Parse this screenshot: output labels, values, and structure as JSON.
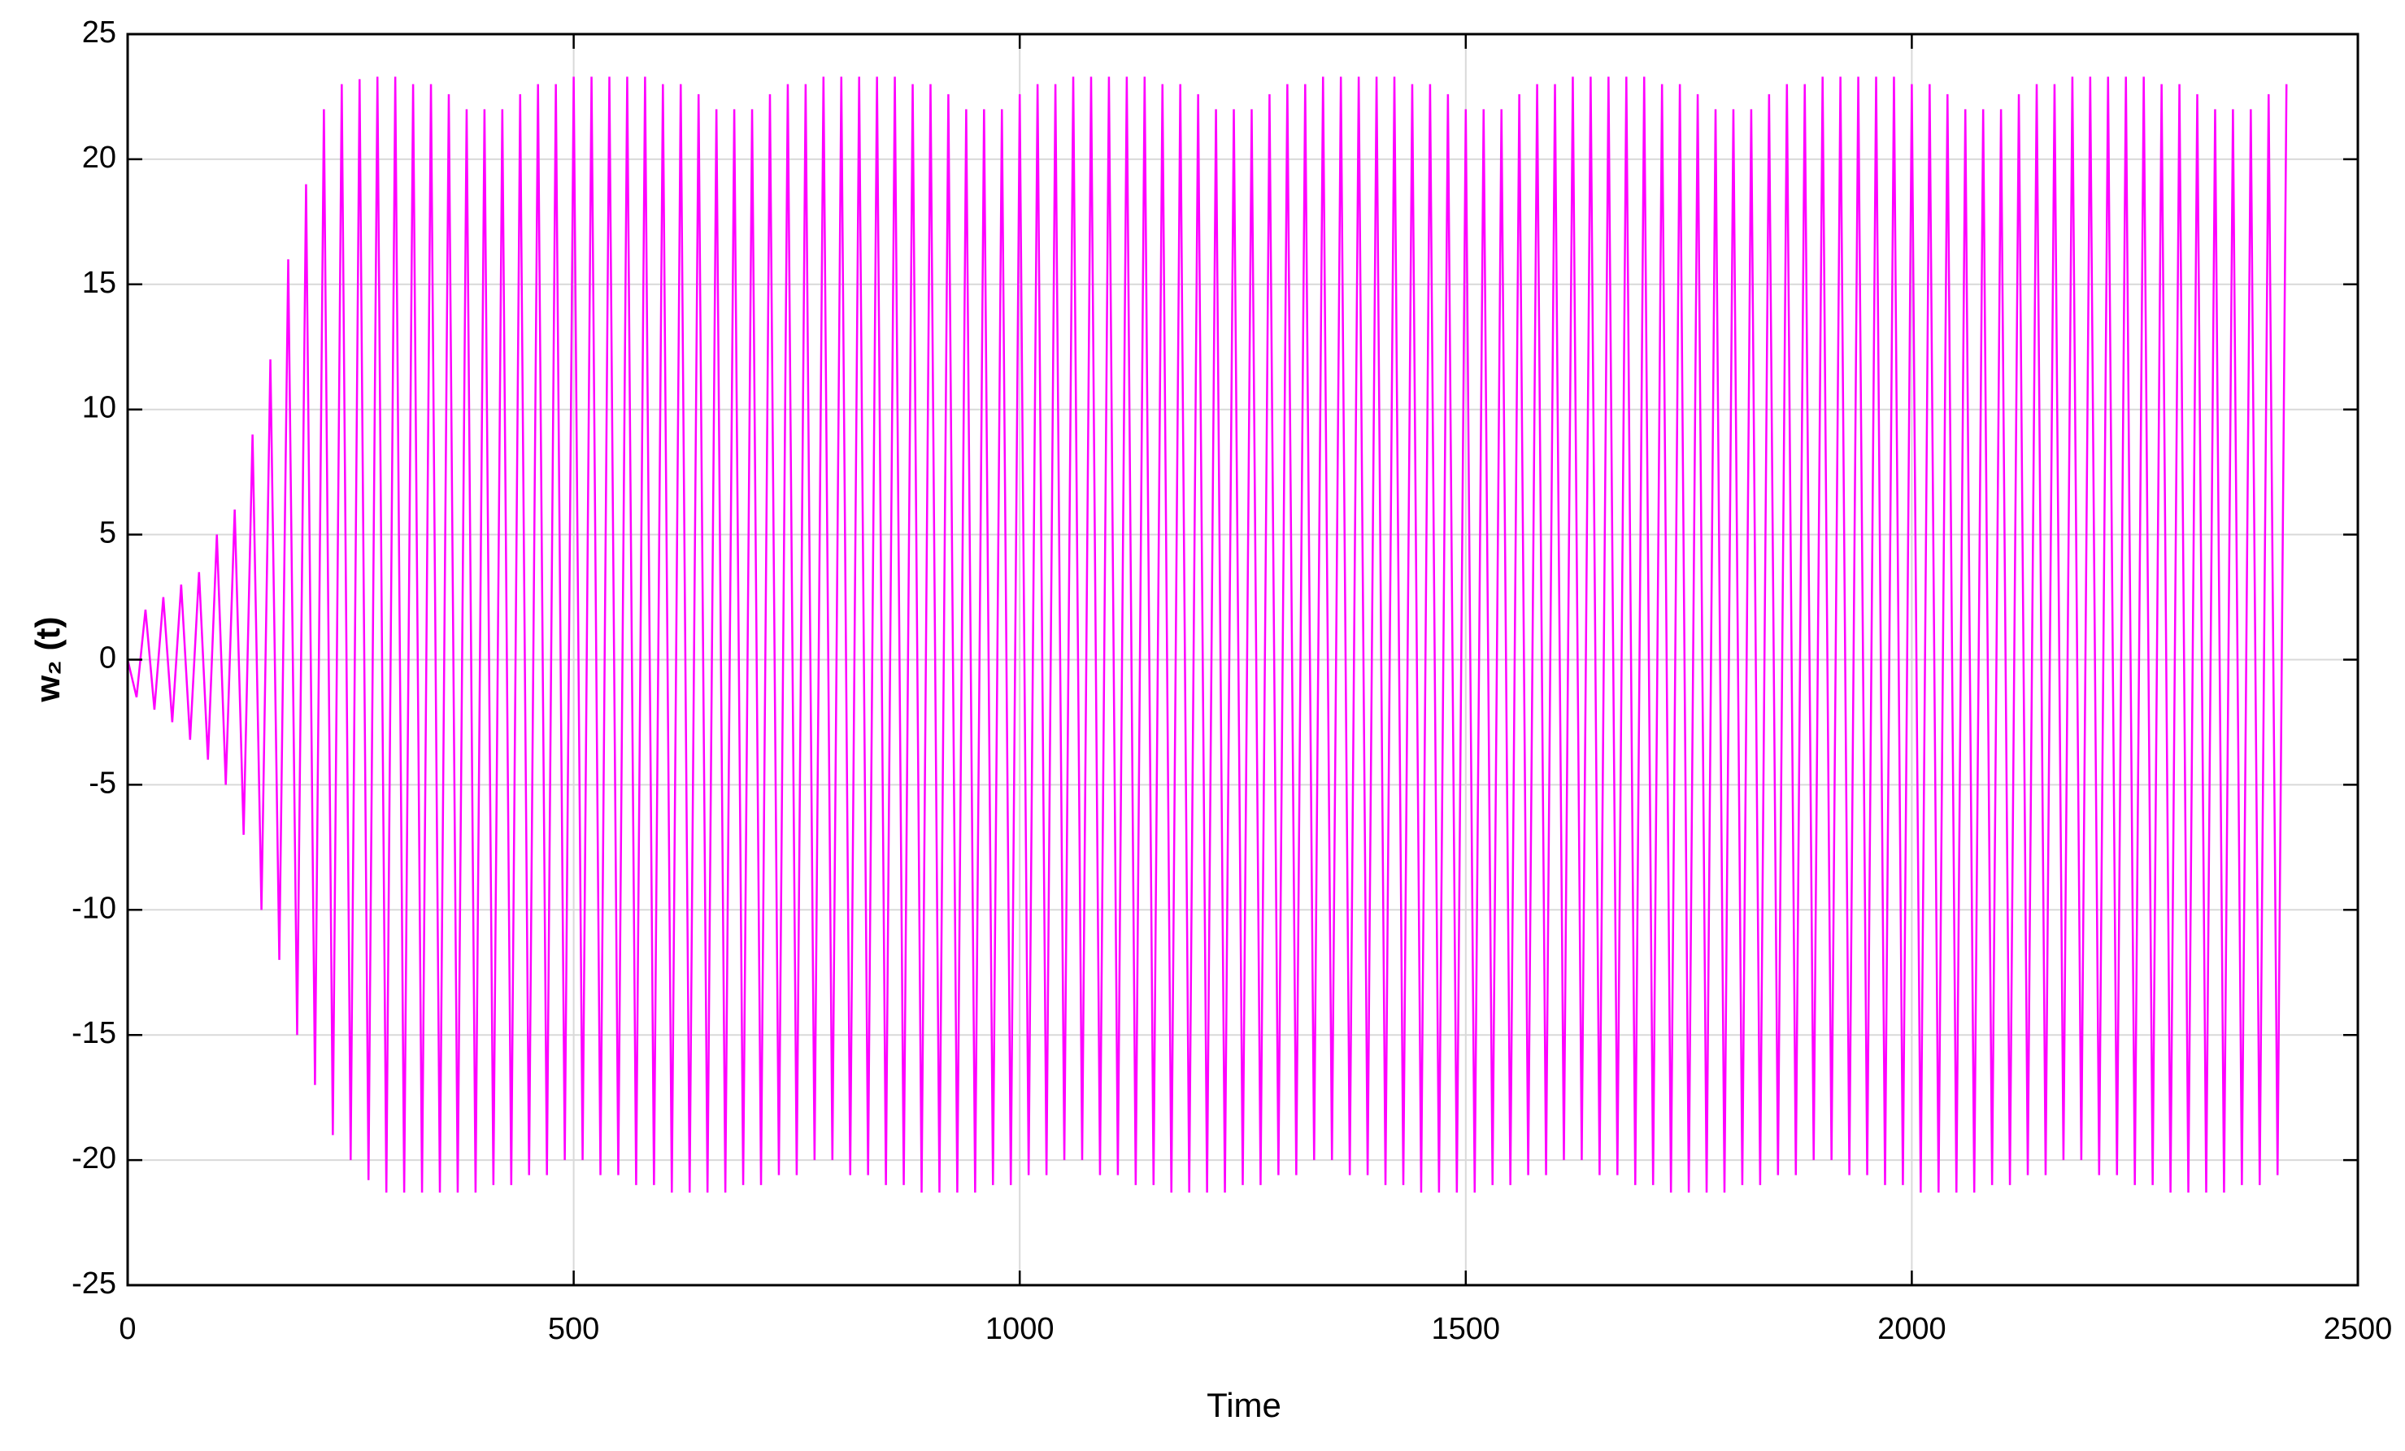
{
  "chart_data": {
    "type": "line",
    "xlabel": "Time",
    "ylabel": "w₂ (t)",
    "color": "#ff00ff",
    "grid": true,
    "xlim": [
      0,
      2500
    ],
    "xticks": [
      0,
      500,
      1000,
      1500,
      2000,
      2500
    ],
    "ylim": [
      -25,
      25
    ],
    "yticks": [
      -25,
      -20,
      -15,
      -10,
      -5,
      0,
      5,
      10,
      15,
      20,
      25
    ],
    "x": [
      0,
      10,
      20,
      30,
      40,
      50,
      60,
      70,
      80,
      90,
      100,
      110,
      120,
      130,
      140,
      150,
      160,
      170,
      180,
      190,
      200,
      210,
      220,
      230,
      240,
      250,
      260,
      270,
      280,
      290,
      300,
      310,
      320,
      330,
      340,
      350,
      360,
      370,
      380,
      390,
      400,
      410,
      420,
      430,
      440,
      450,
      460,
      470,
      480,
      490,
      500,
      510,
      520,
      530,
      540,
      550,
      560,
      570,
      580,
      590,
      600,
      610,
      620,
      630,
      640,
      650,
      660,
      670,
      680,
      690,
      700,
      710,
      720,
      730,
      740,
      750,
      760,
      770,
      780,
      790,
      800,
      810,
      820,
      830,
      840,
      850,
      860,
      870,
      880,
      890,
      900,
      910,
      920,
      930,
      940,
      950,
      960,
      970,
      980,
      990,
      1000,
      1010,
      1020,
      1030,
      1040,
      1050,
      1060,
      1070,
      1080,
      1090,
      1100,
      1110,
      1120,
      1130,
      1140,
      1150,
      1160,
      1170,
      1180,
      1190,
      1200,
      1210,
      1220,
      1230,
      1240,
      1250,
      1260,
      1270,
      1280,
      1290,
      1300,
      1310,
      1320,
      1330,
      1340,
      1350,
      1360,
      1370,
      1380,
      1390,
      1400,
      1410,
      1420,
      1430,
      1440,
      1450,
      1460,
      1470,
      1480,
      1490,
      1500,
      1510,
      1520,
      1530,
      1540,
      1550,
      1560,
      1570,
      1580,
      1590,
      1600,
      1610,
      1620,
      1630,
      1640,
      1650,
      1660,
      1670,
      1680,
      1690,
      1700,
      1710,
      1720,
      1730,
      1740,
      1750,
      1760,
      1770,
      1780,
      1790,
      1800,
      1810,
      1820,
      1830,
      1840,
      1850,
      1860,
      1870,
      1880,
      1890,
      1900,
      1910,
      1920,
      1930,
      1940,
      1950,
      1960,
      1970,
      1980,
      1990,
      2000,
      2010,
      2020,
      2030,
      2040,
      2050,
      2060,
      2070,
      2080,
      2090,
      2100,
      2110,
      2120,
      2130,
      2140,
      2150,
      2160,
      2170,
      2180,
      2190,
      2200,
      2210,
      2220,
      2230,
      2240,
      2250,
      2260,
      2270,
      2280,
      2290,
      2300,
      2310,
      2320,
      2330,
      2340,
      2350,
      2360,
      2370,
      2380,
      2390,
      2400,
      2410,
      2420
    ],
    "values": [
      0,
      -1.5,
      2,
      -2,
      2.5,
      -2.5,
      3,
      -3.2,
      3.5,
      -4,
      5,
      -5,
      6,
      -7,
      9,
      -10,
      12,
      -12,
      16,
      -15,
      19,
      -17,
      22,
      -19,
      23,
      -20,
      23.2,
      -20.8,
      23.3,
      -21.3,
      23.3,
      -21.3,
      23.0,
      -21.3,
      23.0,
      -21.3,
      22.6,
      -21.3,
      22.0,
      -21.3,
      22.0,
      -21.0,
      22.0,
      -21.0,
      22.6,
      -20.6,
      23.0,
      -20.6,
      23.0,
      -20.0,
      23.3,
      -20.0,
      23.3,
      -20.6,
      23.3,
      -20.6,
      23.3,
      -21.0,
      23.3,
      -21.0,
      23.0,
      -21.3,
      23.0,
      -21.3,
      22.6,
      -21.3,
      22.0,
      -21.3,
      22.0,
      -21.0,
      22.0,
      -21.0,
      22.6,
      -20.6,
      23.0,
      -20.6,
      23.0,
      -20.0,
      23.3,
      -20.0,
      23.3,
      -20.6,
      23.3,
      -20.6,
      23.3,
      -21.0,
      23.3,
      -21.0,
      23.0,
      -21.3,
      23.0,
      -21.3,
      22.6,
      -21.3,
      22.0,
      -21.3,
      22.0,
      -21.0,
      22.0,
      -21.0,
      22.6,
      -20.6,
      23.0,
      -20.6,
      23.0,
      -20.0,
      23.3,
      -20.0,
      23.3,
      -20.6,
      23.3,
      -20.6,
      23.3,
      -21.0,
      23.3,
      -21.0,
      23.0,
      -21.3,
      23.0,
      -21.3,
      22.6,
      -21.3,
      22.0,
      -21.3,
      22.0,
      -21.0,
      22.0,
      -21.0,
      22.6,
      -20.6,
      23.0,
      -20.6,
      23.0,
      -20.0,
      23.3,
      -20.0,
      23.3,
      -20.6,
      23.3,
      -20.6,
      23.3,
      -21.0,
      23.3,
      -21.0,
      23.0,
      -21.3,
      23.0,
      -21.3,
      22.6,
      -21.3,
      22.0,
      -21.3,
      22.0,
      -21.0,
      22.0,
      -21.0,
      22.6,
      -20.6,
      23.0,
      -20.6,
      23.0,
      -20.0,
      23.3,
      -20.0,
      23.3,
      -20.6,
      23.3,
      -20.6,
      23.3,
      -21.0,
      23.3,
      -21.0,
      23.0,
      -21.3,
      23.0,
      -21.3,
      22.6,
      -21.3,
      22.0,
      -21.3,
      22.0,
      -21.0,
      22.0,
      -21.0,
      22.6,
      -20.6,
      23.0,
      -20.6,
      23.0,
      -20.0,
      23.3,
      -20.0,
      23.3,
      -20.6,
      23.3,
      -20.6,
      23.3,
      -21.0,
      23.3,
      -21.0,
      23.0,
      -21.3,
      23.0,
      -21.3,
      22.6,
      -21.3,
      22.0,
      -21.3,
      22.0,
      -21.0,
      22.0,
      -21.0,
      22.6,
      -20.6,
      23.0,
      -20.6,
      23.0,
      -20.0,
      23.3,
      -20.0,
      23.3,
      -20.6,
      23.3,
      -20.6,
      23.3,
      -21.0,
      23.3,
      -21.0,
      23.0,
      -21.3,
      23.0,
      -21.3,
      22.6,
      -21.3,
      22.0,
      -21.3,
      22.0,
      -21.0,
      22.0,
      -21.0,
      22.6,
      -20.6,
      23.0
    ]
  }
}
